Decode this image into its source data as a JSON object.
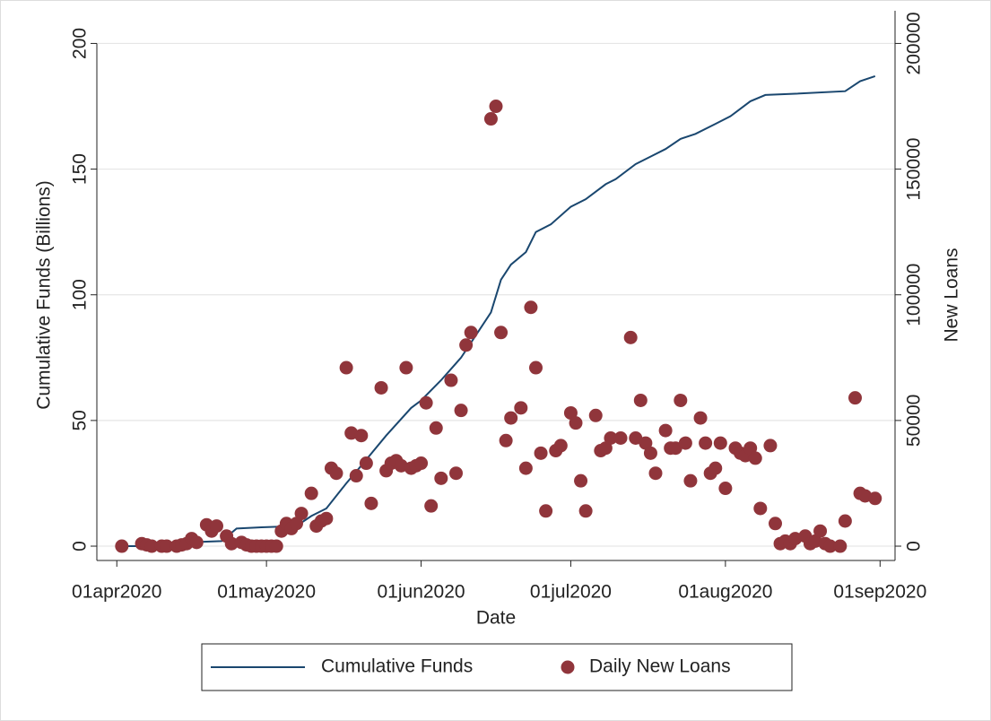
{
  "chart_data": {
    "type": "line-scatter",
    "xlabel": "Date",
    "ylabel": "Cumulative Funds (Billions)",
    "y2label": "New Loans",
    "xlim": [
      "2020-03-28",
      "2020-09-04"
    ],
    "xticks": [
      {
        "value": "2020-04-01",
        "label": "01apr2020"
      },
      {
        "value": "2020-05-01",
        "label": "01may2020"
      },
      {
        "value": "2020-06-01",
        "label": "01jun2020"
      },
      {
        "value": "2020-07-01",
        "label": "01jul2020"
      },
      {
        "value": "2020-08-01",
        "label": "01aug2020"
      },
      {
        "value": "2020-09-01",
        "label": "01sep2020"
      }
    ],
    "ylim": [
      -5.7,
      213
    ],
    "yticks": [
      0,
      50,
      100,
      150,
      200
    ],
    "y2lim": [
      -5700,
      213000
    ],
    "y2ticks": [
      0,
      50000,
      100000,
      150000,
      200000
    ],
    "grid": true,
    "legend": "bottom",
    "series": [
      {
        "name": "Cumulative Funds",
        "type": "line",
        "color": "#1a476f",
        "x": [
          "2020-04-01",
          "2020-04-07",
          "2020-04-08",
          "2020-04-22",
          "2020-04-25",
          "2020-04-30",
          "2020-05-07",
          "2020-05-10",
          "2020-05-13",
          "2020-05-17",
          "2020-05-20",
          "2020-05-25",
          "2020-05-30",
          "2020-06-01",
          "2020-06-05",
          "2020-06-09",
          "2020-06-12",
          "2020-06-15",
          "2020-06-17",
          "2020-06-19",
          "2020-06-22",
          "2020-06-24",
          "2020-06-27",
          "2020-07-01",
          "2020-07-04",
          "2020-07-08",
          "2020-07-10",
          "2020-07-14",
          "2020-07-17",
          "2020-07-20",
          "2020-07-23",
          "2020-07-26",
          "2020-07-30",
          "2020-08-02",
          "2020-08-06",
          "2020-08-09",
          "2020-08-15",
          "2020-08-25",
          "2020-08-28",
          "2020-08-31"
        ],
        "values": [
          0,
          0,
          1,
          2,
          7,
          7.5,
          8,
          12,
          15,
          25,
          32,
          44,
          55,
          58,
          66,
          75,
          84,
          93,
          106,
          112,
          117,
          125,
          128,
          135,
          138,
          144,
          146,
          152,
          155,
          158,
          162,
          164,
          168,
          171,
          177,
          179.5,
          180,
          181,
          185,
          187
        ]
      },
      {
        "name": "Daily New Loans",
        "type": "scatter",
        "axis": "y2",
        "color": "#90353b",
        "x": [
          "2020-04-02",
          "2020-04-06",
          "2020-04-07",
          "2020-04-08",
          "2020-04-10",
          "2020-04-11",
          "2020-04-13",
          "2020-04-14",
          "2020-04-15",
          "2020-04-16",
          "2020-04-17",
          "2020-04-19",
          "2020-04-20",
          "2020-04-21",
          "2020-04-23",
          "2020-04-24",
          "2020-04-26",
          "2020-04-27",
          "2020-04-28",
          "2020-04-29",
          "2020-04-30",
          "2020-05-01",
          "2020-05-02",
          "2020-05-03",
          "2020-05-04",
          "2020-05-05",
          "2020-05-06",
          "2020-05-07",
          "2020-05-08",
          "2020-05-10",
          "2020-05-11",
          "2020-05-12",
          "2020-05-13",
          "2020-05-14",
          "2020-05-15",
          "2020-05-17",
          "2020-05-18",
          "2020-05-19",
          "2020-05-20",
          "2020-05-21",
          "2020-05-22",
          "2020-05-24",
          "2020-05-25",
          "2020-05-26",
          "2020-05-27",
          "2020-05-28",
          "2020-05-29",
          "2020-05-30",
          "2020-05-31",
          "2020-06-01",
          "2020-06-02",
          "2020-06-03",
          "2020-06-04",
          "2020-06-05",
          "2020-06-07",
          "2020-06-08",
          "2020-06-09",
          "2020-06-10",
          "2020-06-11",
          "2020-06-15",
          "2020-06-16",
          "2020-06-17",
          "2020-06-18",
          "2020-06-19",
          "2020-06-21",
          "2020-06-22",
          "2020-06-23",
          "2020-06-24",
          "2020-06-25",
          "2020-06-26",
          "2020-06-28",
          "2020-06-29",
          "2020-07-01",
          "2020-07-02",
          "2020-07-03",
          "2020-07-04",
          "2020-07-06",
          "2020-07-07",
          "2020-07-08",
          "2020-07-09",
          "2020-07-11",
          "2020-07-13",
          "2020-07-14",
          "2020-07-15",
          "2020-07-16",
          "2020-07-17",
          "2020-07-18",
          "2020-07-20",
          "2020-07-21",
          "2020-07-22",
          "2020-07-23",
          "2020-07-24",
          "2020-07-25",
          "2020-07-27",
          "2020-07-28",
          "2020-07-29",
          "2020-07-30",
          "2020-07-31",
          "2020-08-01",
          "2020-08-03",
          "2020-08-04",
          "2020-08-05",
          "2020-08-06",
          "2020-08-07",
          "2020-08-08",
          "2020-08-10",
          "2020-08-11",
          "2020-08-12",
          "2020-08-13",
          "2020-08-14",
          "2020-08-15",
          "2020-08-17",
          "2020-08-18",
          "2020-08-19",
          "2020-08-20",
          "2020-08-21",
          "2020-08-22",
          "2020-08-24",
          "2020-08-25",
          "2020-08-27",
          "2020-08-28",
          "2020-08-29",
          "2020-08-31"
        ],
        "values": [
          0,
          1000,
          500,
          0,
          0,
          0,
          0,
          500,
          1000,
          3000,
          1500,
          8500,
          6000,
          8000,
          4000,
          1000,
          1500,
          500,
          0,
          0,
          0,
          0,
          0,
          0,
          6000,
          9000,
          7000,
          9000,
          13000,
          21000,
          8000,
          10000,
          11000,
          31000,
          29000,
          71000,
          45000,
          28000,
          44000,
          33000,
          17000,
          63000,
          30000,
          33000,
          34000,
          32000,
          71000,
          31000,
          32000,
          33000,
          57000,
          16000,
          47000,
          27000,
          66000,
          29000,
          54000,
          80000,
          85000,
          170000,
          175000,
          85000,
          42000,
          51000,
          55000,
          31000,
          95000,
          71000,
          37000,
          14000,
          38000,
          40000,
          53000,
          49000,
          26000,
          14000,
          52000,
          38000,
          39000,
          43000,
          43000,
          83000,
          43000,
          58000,
          41000,
          37000,
          29000,
          46000,
          39000,
          39000,
          58000,
          41000,
          26000,
          51000,
          41000,
          29000,
          31000,
          41000,
          23000,
          39000,
          37000,
          36000,
          39000,
          35000,
          15000,
          40000,
          9000,
          1000,
          2000,
          1000,
          3000,
          4000,
          1000,
          2000,
          6000,
          1000,
          0,
          0,
          10000,
          59000,
          21000,
          20000,
          19000
        ]
      }
    ]
  }
}
